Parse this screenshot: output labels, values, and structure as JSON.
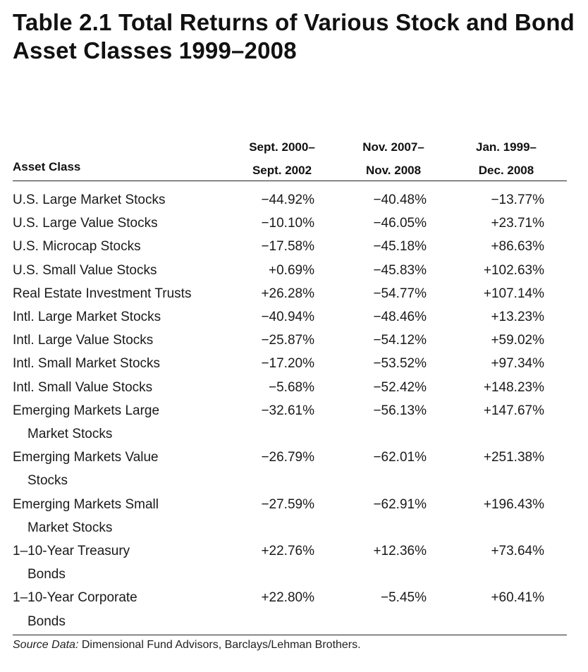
{
  "title": {
    "line1": "Table 2.1 Total Returns of Various Stock and Bond",
    "line2": "Asset Classes 1999–2008"
  },
  "headers": {
    "asset_class": "Asset Class",
    "col1": {
      "line1": "Sept. 2000–",
      "line2": "Sept. 2002"
    },
    "col2": {
      "line1": "Nov. 2007–",
      "line2": "Nov. 2008"
    },
    "col3": {
      "line1": "Jan. 1999–",
      "line2": "Dec. 2008"
    }
  },
  "rows": [
    {
      "name": [
        "U.S. Large Market Stocks"
      ],
      "v1": "−44.92%",
      "v2": "−40.48%",
      "v3": "−13.77%"
    },
    {
      "name": [
        "U.S. Large Value Stocks"
      ],
      "v1": "−10.10%",
      "v2": "−46.05%",
      "v3": "+23.71%"
    },
    {
      "name": [
        "U.S. Microcap Stocks"
      ],
      "v1": "−17.58%",
      "v2": "−45.18%",
      "v3": "+86.63%"
    },
    {
      "name": [
        "U.S. Small Value Stocks"
      ],
      "v1": "+0.69%",
      "v2": "−45.83%",
      "v3": "+102.63%"
    },
    {
      "name": [
        "Real Estate Investment Trusts"
      ],
      "v1": "+26.28%",
      "v2": "−54.77%",
      "v3": "+107.14%"
    },
    {
      "name": [
        "Intl. Large Market Stocks"
      ],
      "v1": "−40.94%",
      "v2": "−48.46%",
      "v3": "+13.23%"
    },
    {
      "name": [
        "Intl. Large Value Stocks"
      ],
      "v1": "−25.87%",
      "v2": "−54.12%",
      "v3": "+59.02%"
    },
    {
      "name": [
        "Intl. Small Market Stocks"
      ],
      "v1": "−17.20%",
      "v2": "−53.52%",
      "v3": "+97.34%"
    },
    {
      "name": [
        "Intl. Small Value Stocks"
      ],
      "v1": "−5.68%",
      "v2": "−52.42%",
      "v3": "+148.23%"
    },
    {
      "name": [
        "Emerging Markets Large",
        "Market Stocks"
      ],
      "v1": "−32.61%",
      "v2": "−56.13%",
      "v3": "+147.67%"
    },
    {
      "name": [
        "Emerging Markets Value",
        "Stocks"
      ],
      "v1": "−26.79%",
      "v2": "−62.01%",
      "v3": "+251.38%"
    },
    {
      "name": [
        "Emerging Markets Small",
        "Market Stocks"
      ],
      "v1": "−27.59%",
      "v2": "−62.91%",
      "v3": "+196.43%"
    },
    {
      "name": [
        "1–10-Year Treasury",
        "Bonds"
      ],
      "v1": "+22.76%",
      "v2": "+12.36%",
      "v3": "+73.64%"
    },
    {
      "name": [
        "1–10-Year Corporate",
        "Bonds"
      ],
      "v1": "+22.80%",
      "v2": "−5.45%",
      "v3": "+60.41%"
    }
  ],
  "source": {
    "label": "Source Data:",
    "text": "Dimensional Fund Advisors, Barclays/Lehman Brothers."
  }
}
